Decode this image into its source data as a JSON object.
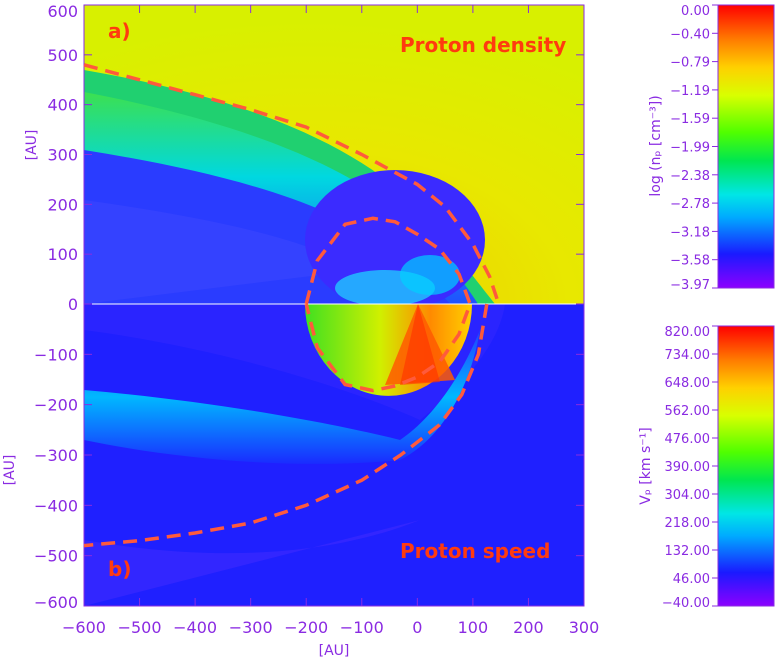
{
  "chart_data": {
    "type": "heatmap",
    "x_axis": {
      "label": "[AU]",
      "range": [
        -600,
        300
      ],
      "ticks": [
        -600,
        -500,
        -400,
        -300,
        -200,
        -100,
        0,
        100,
        200,
        300
      ],
      "tick_labels": [
        "−600",
        "−500",
        "−400",
        "−300",
        "−200",
        "−100",
        "0",
        "100",
        "200",
        "300"
      ]
    },
    "panels": [
      {
        "id": "a",
        "panel_label": "a)",
        "annotation": "Proton density",
        "y_axis": {
          "label": "[AU]",
          "range": [
            0,
            600
          ],
          "ticks": [
            0,
            100,
            200,
            300,
            400,
            500,
            600
          ],
          "tick_labels": [
            "0",
            "100",
            "200",
            "300",
            "400",
            "500",
            "600"
          ]
        },
        "colorbar": {
          "title": "log (nₚ [cm⁻³])",
          "range": [
            -3.97,
            0.0
          ],
          "labels": [
            "0.00",
            "−0.40",
            "−0.79",
            "−1.19",
            "−1.59",
            "−1.99",
            "−2.38",
            "−2.78",
            "−3.18",
            "−3.58",
            "−3.97"
          ]
        }
      },
      {
        "id": "b",
        "panel_label": "b)",
        "annotation": "Proton speed",
        "y_axis": {
          "label": "[AU]",
          "range": [
            -600,
            0
          ],
          "ticks": [
            0,
            -100,
            -200,
            -300,
            -400,
            -500,
            -600
          ],
          "tick_labels": [
            "0",
            "−100",
            "−200",
            "−300",
            "−400",
            "−500",
            "−600"
          ]
        },
        "colorbar": {
          "title": "Vₚ [km s⁻¹]",
          "range": [
            -40.0,
            820.0
          ],
          "labels": [
            "820.00",
            "734.00",
            "648.00",
            "562.00",
            "476.00",
            "390.00",
            "304.00",
            "218.00",
            "132.00",
            "46.00",
            "−40.00"
          ]
        }
      }
    ],
    "boundaries": [
      {
        "name": "termination-shock",
        "style": "dashed",
        "color": "#ff5a3c",
        "circle": {
          "center_x": -55,
          "center_y": 0,
          "radius": 150
        },
        "points": [
          [
            -200,
            0
          ],
          [
            -180,
            87
          ],
          [
            -130,
            160
          ],
          [
            -80,
            172
          ],
          [
            -40,
            165
          ],
          [
            0,
            140
          ],
          [
            40,
            110
          ],
          [
            75,
            60
          ],
          [
            95,
            0
          ],
          [
            75,
            -60
          ],
          [
            40,
            -115
          ],
          [
            0,
            -145
          ],
          [
            -40,
            -163
          ],
          [
            -80,
            -172
          ],
          [
            -130,
            -160
          ],
          [
            -180,
            -87
          ],
          [
            -200,
            0
          ]
        ]
      },
      {
        "name": "heliopause-upper",
        "style": "dashed",
        "color": "#ff5a3c",
        "points": [
          [
            -600,
            480
          ],
          [
            -500,
            450
          ],
          [
            -400,
            420
          ],
          [
            -300,
            390
          ],
          [
            -200,
            355
          ],
          [
            -100,
            300
          ],
          [
            0,
            240
          ],
          [
            50,
            195
          ],
          [
            100,
            120
          ],
          [
            130,
            55
          ],
          [
            145,
            5
          ]
        ]
      },
      {
        "name": "heliopause-lower",
        "style": "dashed",
        "color": "#ff5a3c",
        "points": [
          [
            125,
            0
          ],
          [
            110,
            -100
          ],
          [
            80,
            -180
          ],
          [
            40,
            -240
          ],
          [
            -30,
            -300
          ],
          [
            -100,
            -350
          ],
          [
            -200,
            -400
          ],
          [
            -300,
            -435
          ],
          [
            -400,
            -455
          ],
          [
            -500,
            -470
          ],
          [
            -600,
            -480
          ]
        ]
      }
    ]
  }
}
